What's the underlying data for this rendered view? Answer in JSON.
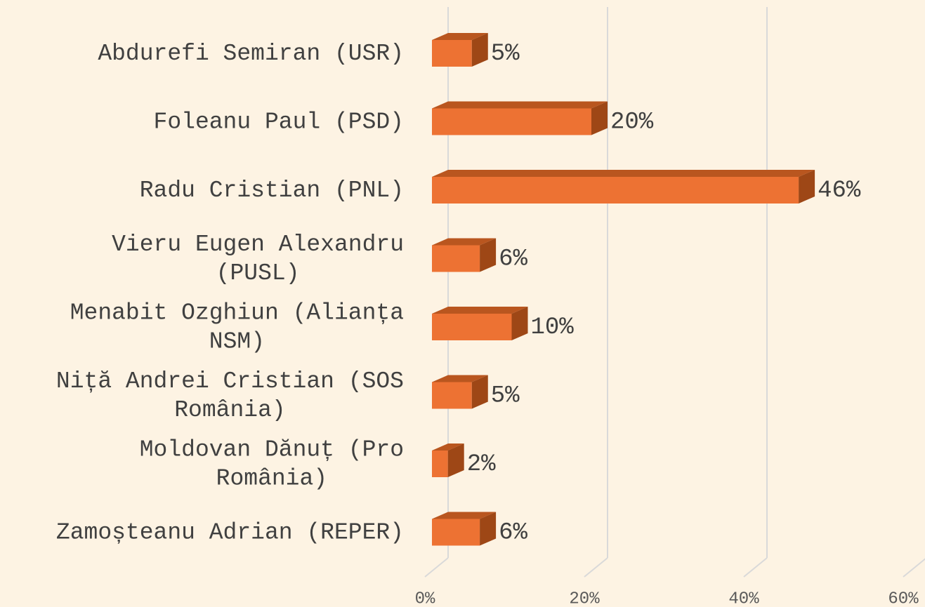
{
  "chart_data": {
    "type": "bar",
    "orientation": "horizontal",
    "categories": [
      "Abdurefi Semiran (USR)",
      "Foleanu Paul (PSD)",
      "Radu Cristian (PNL)",
      "Vieru Eugen Alexandru (PUSL)",
      "Menabit Ozghiun (Alianța NSM)",
      "Niță Andrei Cristian (SOS România)",
      "Moldovan Dănuț (Pro România)",
      "Zamoșteanu Adrian (REPER)"
    ],
    "values": [
      5,
      20,
      46,
      6,
      10,
      5,
      2,
      6
    ],
    "value_labels": [
      "5%",
      "20%",
      "46%",
      "6%",
      "10%",
      "5%",
      "2%",
      "6%"
    ],
    "color": "#ed7233",
    "xlim": [
      0,
      60
    ],
    "xticks": [
      {
        "value": 0,
        "label": "0%"
      },
      {
        "value": 20,
        "label": "20%"
      },
      {
        "value": 40,
        "label": "40%"
      },
      {
        "value": 60,
        "label": "60%"
      }
    ],
    "grid": true
  }
}
